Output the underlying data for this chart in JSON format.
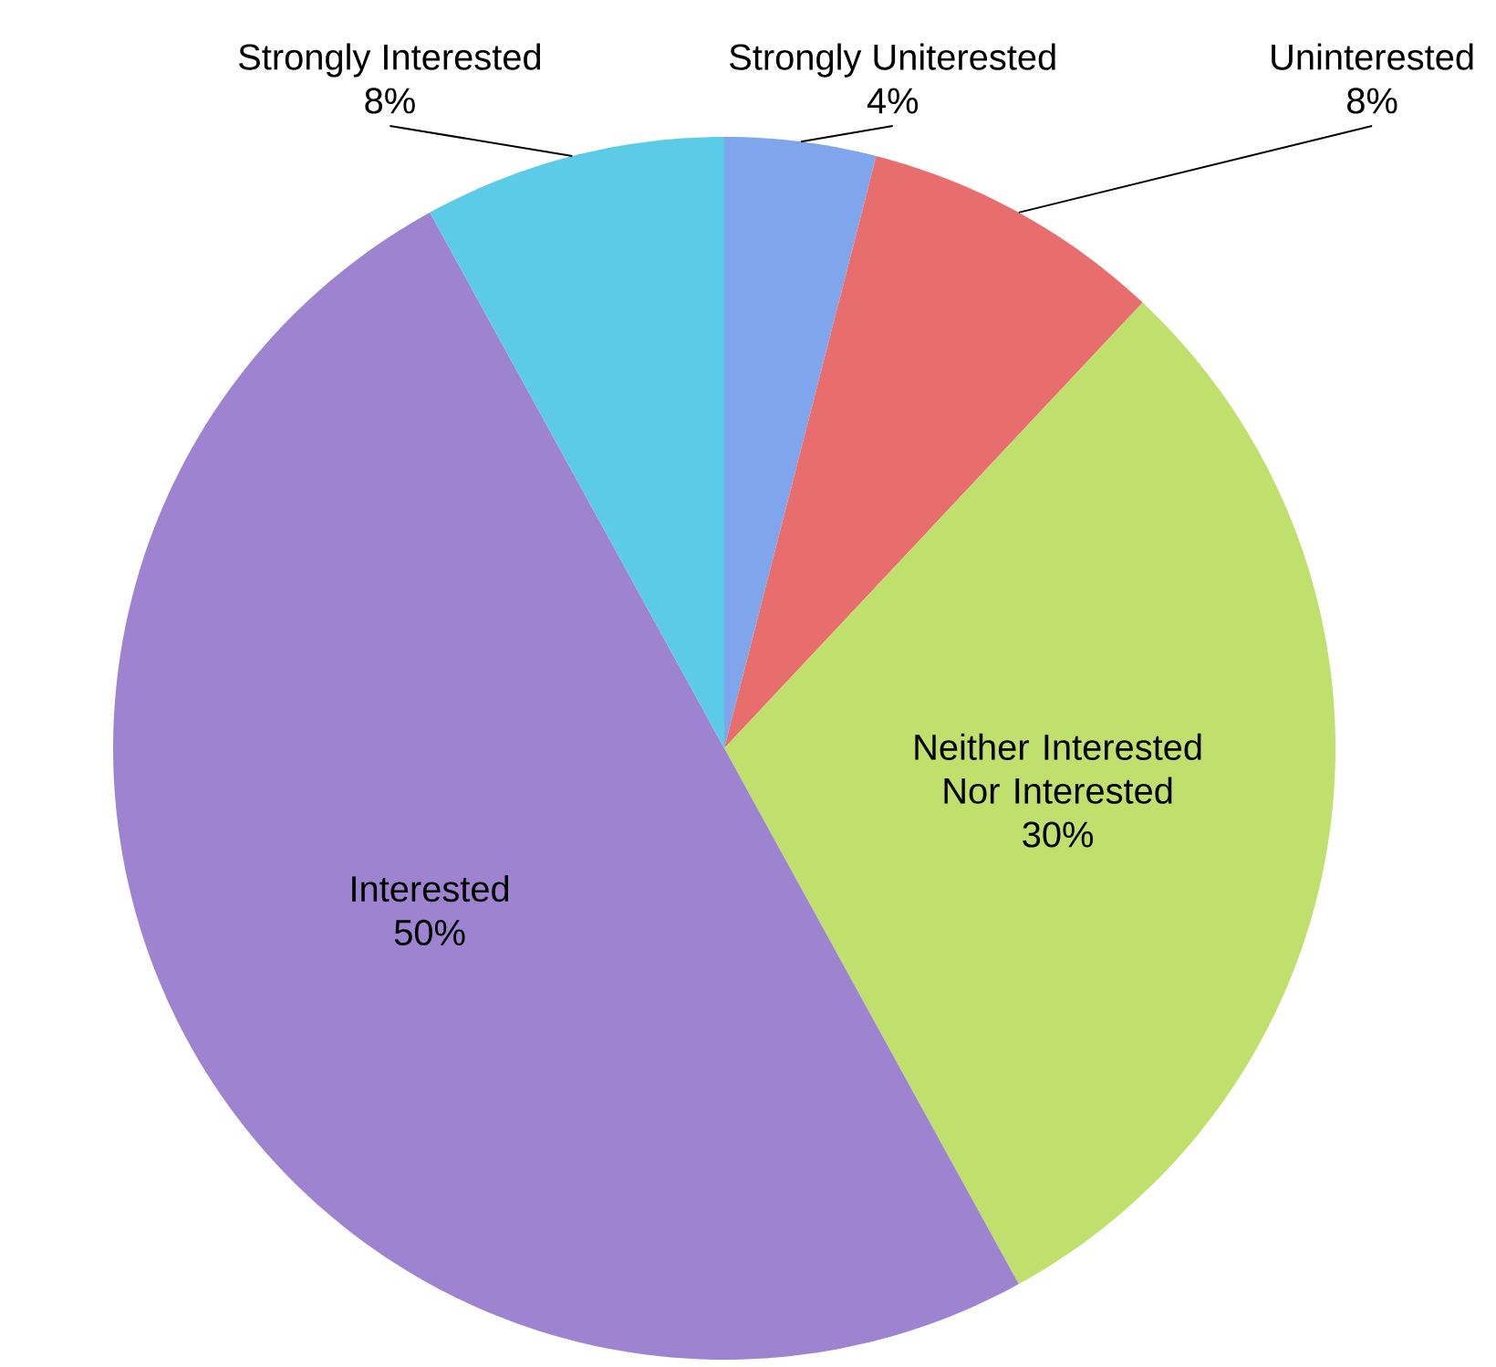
{
  "chart_data": {
    "type": "pie",
    "categories": [
      "Strongly Uniterested",
      "Uninterested",
      "Neither Interested Nor Interested",
      "Interested",
      "Strongly Interested"
    ],
    "values": [
      4,
      8,
      30,
      50,
      8
    ],
    "colors": [
      "#7fa6ec",
      "#e86e6e",
      "#bfe06c",
      "#9e84d0",
      "#5ccbe8"
    ],
    "value_labels": [
      "4%",
      "8%",
      "30%",
      "50%",
      "8%"
    ]
  }
}
